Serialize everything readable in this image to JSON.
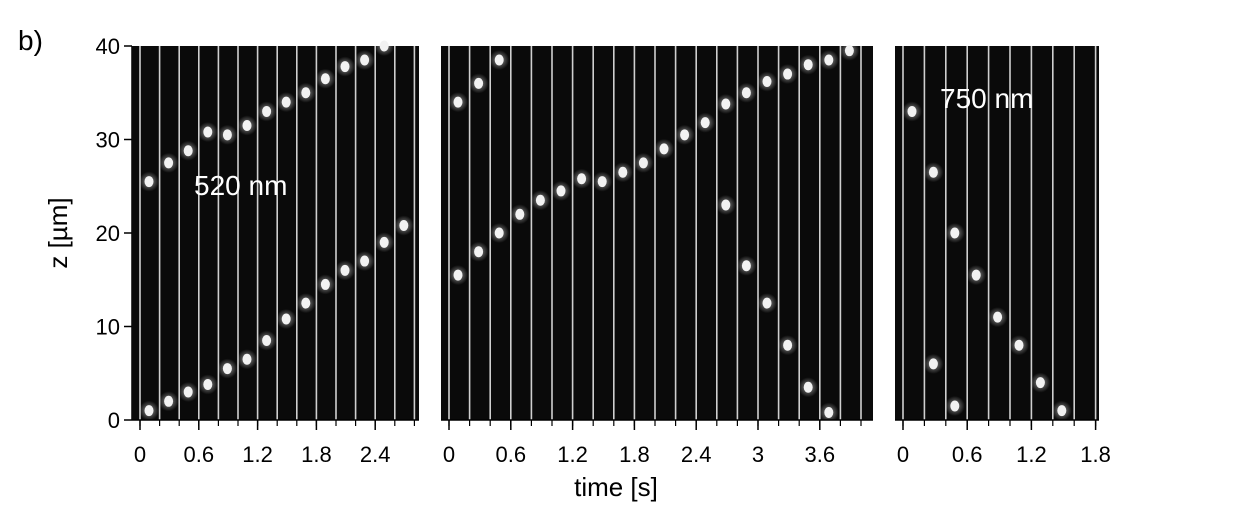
{
  "panel_label": "b)",
  "chart_data": {
    "type": "scatter",
    "description_free": true,
    "xlabel": "time [s]",
    "ylabel": "z [µm]",
    "ylim": [
      0,
      40
    ],
    "y_ticks": [
      "0",
      "10",
      "20",
      "30",
      "40"
    ],
    "panels": [
      {
        "name": "panel-520nm",
        "annotation": "520 nm",
        "xlim": [
          0,
          2.75
        ],
        "x_ticks": [
          {
            "value": 0,
            "label": "0"
          },
          {
            "value": 0.6,
            "label": "0.6"
          },
          {
            "value": 1.2,
            "label": "1.2"
          },
          {
            "value": 1.8,
            "label": "1.8"
          },
          {
            "value": 2.4,
            "label": "2.4"
          }
        ],
        "frame_interval": 0.2,
        "tracks": [
          [
            [
              0.0,
              25.5
            ],
            [
              0.2,
              27.5
            ],
            [
              0.4,
              28.8
            ],
            [
              0.6,
              30.8
            ],
            [
              0.8,
              30.5
            ],
            [
              1.0,
              31.5
            ],
            [
              1.2,
              33.0
            ],
            [
              1.4,
              34.0
            ],
            [
              1.6,
              35.0
            ],
            [
              1.8,
              36.5
            ],
            [
              2.0,
              37.8
            ],
            [
              2.2,
              38.5
            ],
            [
              2.4,
              40.0
            ]
          ],
          [
            [
              0.0,
              1.0
            ],
            [
              0.2,
              2.0
            ],
            [
              0.4,
              3.0
            ],
            [
              0.6,
              3.8
            ],
            [
              0.8,
              5.5
            ],
            [
              1.0,
              6.5
            ],
            [
              1.2,
              8.5
            ],
            [
              1.4,
              10.8
            ],
            [
              1.6,
              12.5
            ],
            [
              1.8,
              14.5
            ],
            [
              2.0,
              16.0
            ],
            [
              2.2,
              17.0
            ],
            [
              2.4,
              19.0
            ],
            [
              2.6,
              20.8
            ]
          ]
        ]
      },
      {
        "name": "panel-middle",
        "annotation": "",
        "xlim": [
          0,
          4.0
        ],
        "x_ticks": [
          {
            "value": 0,
            "label": "0"
          },
          {
            "value": 0.6,
            "label": "0.6"
          },
          {
            "value": 1.2,
            "label": "1.2"
          },
          {
            "value": 1.8,
            "label": "1.8"
          },
          {
            "value": 2.4,
            "label": "2.4"
          },
          {
            "value": 3.0,
            "label": "3"
          },
          {
            "value": 3.6,
            "label": "3.6"
          }
        ],
        "frame_interval": 0.2,
        "tracks": [
          [
            [
              0.0,
              34.0
            ],
            [
              0.2,
              36.0
            ],
            [
              0.4,
              38.5
            ]
          ],
          [
            [
              0.0,
              15.5
            ],
            [
              0.2,
              18.0
            ],
            [
              0.4,
              20.0
            ],
            [
              0.6,
              22.0
            ],
            [
              0.8,
              23.5
            ],
            [
              1.0,
              24.5
            ],
            [
              1.2,
              25.8
            ],
            [
              1.4,
              25.5
            ],
            [
              1.6,
              26.5
            ],
            [
              1.8,
              27.5
            ],
            [
              2.0,
              29.0
            ],
            [
              2.2,
              30.5
            ],
            [
              2.4,
              31.8
            ],
            [
              2.6,
              33.8
            ],
            [
              2.8,
              35.0
            ],
            [
              3.0,
              36.2
            ],
            [
              3.2,
              37.0
            ],
            [
              3.4,
              38.0
            ],
            [
              3.6,
              38.5
            ],
            [
              3.8,
              39.5
            ]
          ],
          [
            [
              2.6,
              23.0
            ],
            [
              2.8,
              16.5
            ],
            [
              3.0,
              12.5
            ],
            [
              3.2,
              8.0
            ],
            [
              3.4,
              3.5
            ],
            [
              3.6,
              0.8
            ]
          ]
        ]
      },
      {
        "name": "panel-750nm",
        "annotation": "750 nm",
        "xlim": [
          0,
          1.85
        ],
        "x_ticks": [
          {
            "value": 0,
            "label": "0"
          },
          {
            "value": 0.6,
            "label": "0.6"
          },
          {
            "value": 1.2,
            "label": "1.2"
          },
          {
            "value": 1.8,
            "label": "1.8"
          }
        ],
        "frame_interval": 0.2,
        "tracks": [
          [
            [
              0.0,
              33.0
            ],
            [
              0.2,
              26.5
            ],
            [
              0.4,
              20.0
            ],
            [
              0.6,
              15.5
            ],
            [
              0.8,
              11.0
            ],
            [
              1.0,
              8.0
            ],
            [
              1.2,
              4.0
            ],
            [
              1.4,
              1.0
            ]
          ],
          [
            [
              0.2,
              6.0
            ],
            [
              0.4,
              1.5
            ]
          ]
        ]
      }
    ]
  }
}
